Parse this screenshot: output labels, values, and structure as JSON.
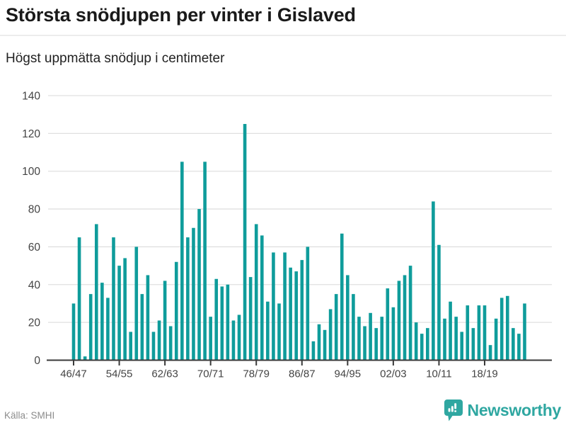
{
  "header": {
    "title": "Största snödjupen per vinter i Gislaved",
    "subtitle": "Högst uppmätta snödjup i centimeter"
  },
  "chart_data": {
    "type": "bar",
    "title": "Största snödjupen per vinter i Gislaved",
    "subtitle": "Högst uppmätta snödjup i centimeter",
    "unit": "cm",
    "categories": [
      "46/47",
      "47/48",
      "48/49",
      "49/50",
      "50/51",
      "51/52",
      "52/53",
      "53/54",
      "54/55",
      "55/56",
      "56/57",
      "57/58",
      "58/59",
      "59/60",
      "60/61",
      "61/62",
      "62/63",
      "63/64",
      "64/65",
      "65/66",
      "66/67",
      "67/68",
      "68/69",
      "69/70",
      "70/71",
      "71/72",
      "72/73",
      "73/74",
      "74/75",
      "75/76",
      "76/77",
      "77/78",
      "78/79",
      "79/80",
      "80/81",
      "81/82",
      "82/83",
      "83/84",
      "84/85",
      "85/86",
      "86/87",
      "87/88",
      "88/89",
      "89/90",
      "90/91",
      "91/92",
      "92/93",
      "93/94",
      "94/95",
      "95/96",
      "96/97",
      "97/98",
      "98/99",
      "99/00",
      "00/01",
      "01/02",
      "02/03",
      "03/04",
      "04/05",
      "05/06",
      "06/07",
      "07/08",
      "08/09",
      "09/10",
      "10/11",
      "11/12",
      "12/13",
      "13/14",
      "14/15",
      "15/16",
      "16/17",
      "17/18",
      "18/19",
      "19/20",
      "20/21",
      "21/22",
      "22/23",
      "23/24",
      "24/25",
      "25/26"
    ],
    "values": [
      30,
      65,
      2,
      35,
      72,
      41,
      33,
      65,
      50,
      54,
      15,
      60,
      35,
      45,
      15,
      21,
      42,
      18,
      52,
      105,
      65,
      70,
      80,
      105,
      23,
      43,
      39,
      40,
      21,
      24,
      125,
      44,
      72,
      66,
      31,
      57,
      30,
      57,
      49,
      47,
      53,
      60,
      10,
      19,
      16,
      27,
      35,
      67,
      45,
      35,
      23,
      18,
      25,
      17,
      23,
      38,
      28,
      42,
      45,
      50,
      20,
      14,
      17,
      84,
      61,
      22,
      31,
      23,
      15,
      29,
      17,
      29,
      29,
      8,
      22,
      33,
      34,
      17,
      14,
      30
    ],
    "x_tick_labels": [
      "46/47",
      "54/55",
      "62/63",
      "70/71",
      "78/79",
      "86/87",
      "94/95",
      "02/03",
      "10/11",
      "18/19"
    ],
    "y_ticks": [
      0,
      20,
      40,
      60,
      80,
      100,
      120,
      140
    ],
    "ylim": [
      0,
      140
    ],
    "grid": "horizontal",
    "legend": "none",
    "bar_color": "#0f9c9b",
    "axis_color": "#3a3a3a",
    "grid_color": "#e0e0e0",
    "tick_label_color": "#444444"
  },
  "footer": {
    "source": "Källa: SMHI",
    "brand": "Newsworthy",
    "brand_color": "#2fa7a1"
  }
}
